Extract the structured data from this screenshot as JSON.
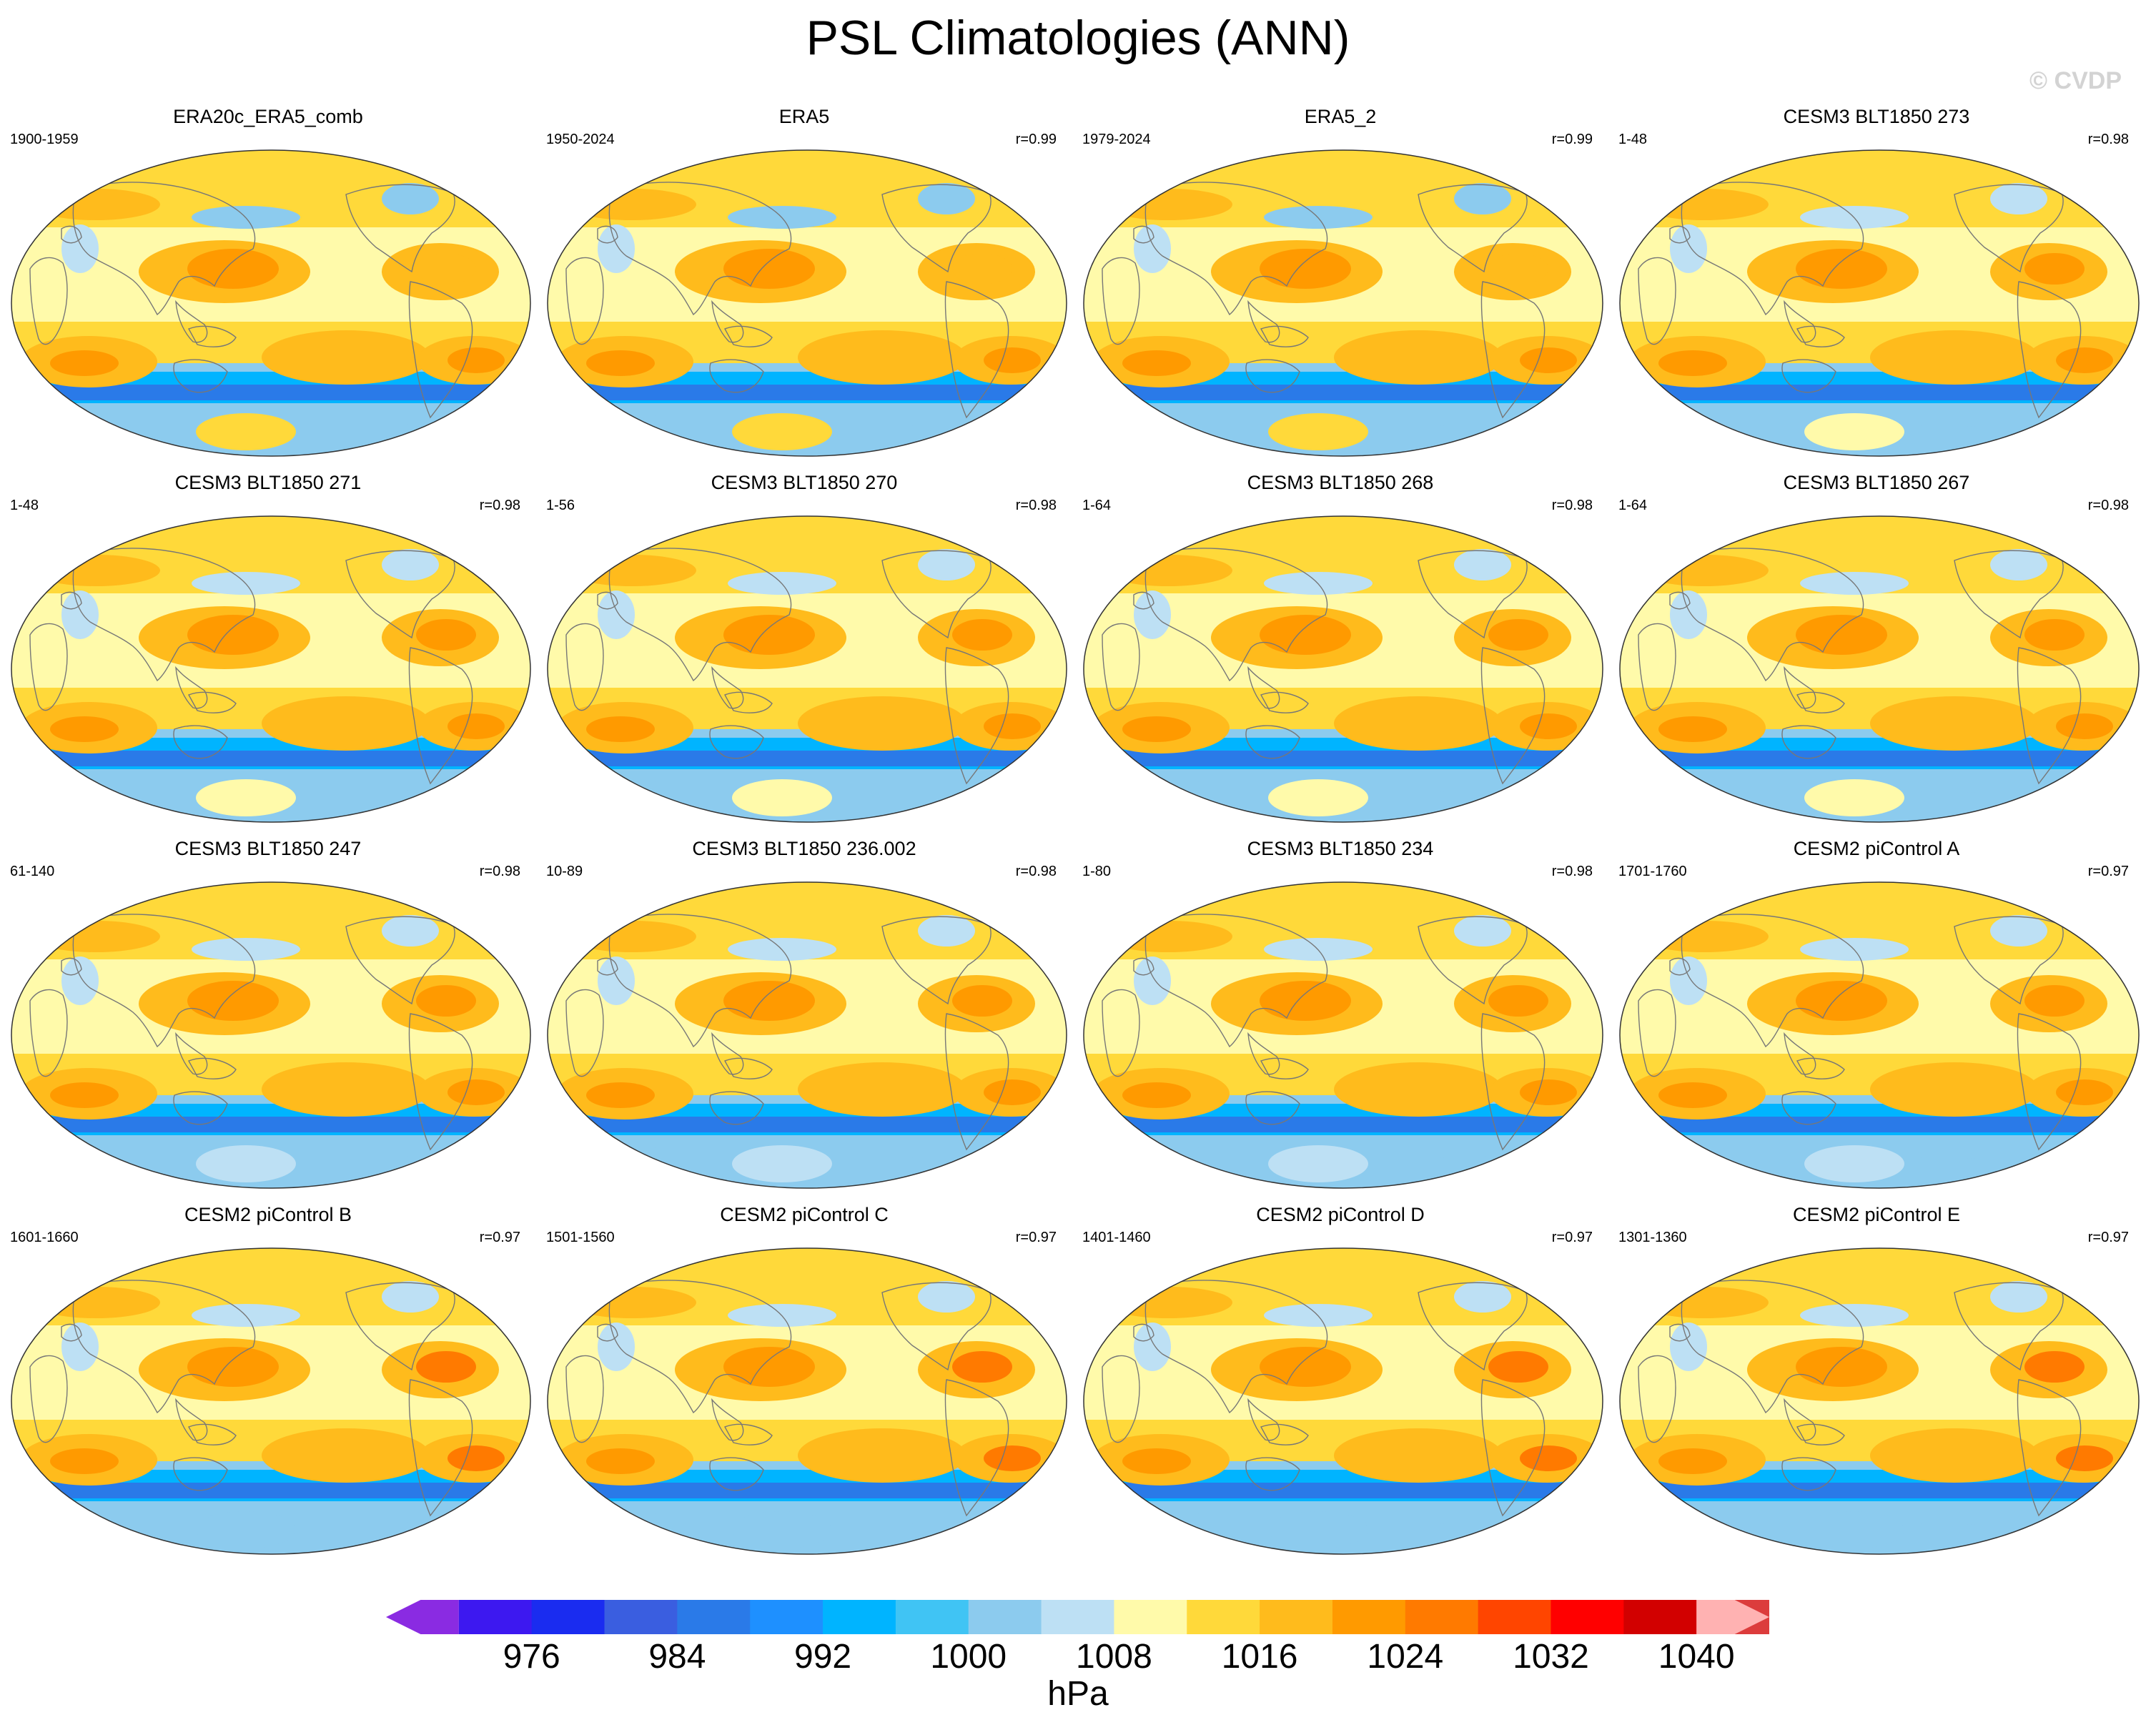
{
  "title": "PSL Climatologies (ANN)",
  "watermark": "© CVDP",
  "chart_data": {
    "type": "heatmap",
    "title": "PSL Climatologies (ANN)",
    "variable": "PSL",
    "season": "ANN",
    "projection": "Robinson (Pacific-centered global map)",
    "panels": [
      {
        "title": "ERA20c_ERA5_comb",
        "years": "1900-1959",
        "r": ""
      },
      {
        "title": "ERA5",
        "years": "1950-2024",
        "r": "r=0.99"
      },
      {
        "title": "ERA5_2",
        "years": "1979-2024",
        "r": "r=0.99"
      },
      {
        "title": "CESM3 BLT1850 273",
        "years": "1-48",
        "r": "r=0.98"
      },
      {
        "title": "CESM3 BLT1850 271",
        "years": "1-48",
        "r": "r=0.98"
      },
      {
        "title": "CESM3 BLT1850 270",
        "years": "1-56",
        "r": "r=0.98"
      },
      {
        "title": "CESM3 BLT1850 268",
        "years": "1-64",
        "r": "r=0.98"
      },
      {
        "title": "CESM3 BLT1850 267",
        "years": "1-64",
        "r": "r=0.98"
      },
      {
        "title": "CESM3 BLT1850 247",
        "years": "61-140",
        "r": "r=0.98"
      },
      {
        "title": "CESM3 BLT1850 236.002",
        "years": "10-89",
        "r": "r=0.98"
      },
      {
        "title": "CESM3 BLT1850 234",
        "years": "1-80",
        "r": "r=0.98"
      },
      {
        "title": "CESM2 piControl A",
        "years": "1701-1760",
        "r": "r=0.97"
      },
      {
        "title": "CESM2 piControl B",
        "years": "1601-1660",
        "r": "r=0.97"
      },
      {
        "title": "CESM2 piControl C",
        "years": "1501-1560",
        "r": "r=0.97"
      },
      {
        "title": "CESM2 piControl D",
        "years": "1401-1460",
        "r": "r=0.97"
      },
      {
        "title": "CESM2 piControl E",
        "years": "1301-1360",
        "r": "r=0.97"
      }
    ],
    "colorbar": {
      "unit": "hPa",
      "levels": [
        972,
        976,
        980,
        984,
        988,
        992,
        996,
        1000,
        1004,
        1008,
        1012,
        1016,
        1020,
        1024,
        1028,
        1032,
        1036,
        1040
      ],
      "tick_labels": [
        "976",
        "984",
        "992",
        "1000",
        "1008",
        "1016",
        "1024",
        "1032",
        "1040"
      ],
      "colors": [
        "#8a2be2",
        "#3d18f0",
        "#1a2cf0",
        "#3a5ee0",
        "#2a7ae8",
        "#1e90ff",
        "#00b4ff",
        "#40c4f4",
        "#8ccbee",
        "#bde0f4",
        "#fffaaa",
        "#ffd93a",
        "#ffbb1c",
        "#ff9a00",
        "#ff7a00",
        "#ff4500",
        "#ff0000",
        "#d20000",
        "#dc3c3c",
        "#ffb2b2"
      ]
    }
  }
}
